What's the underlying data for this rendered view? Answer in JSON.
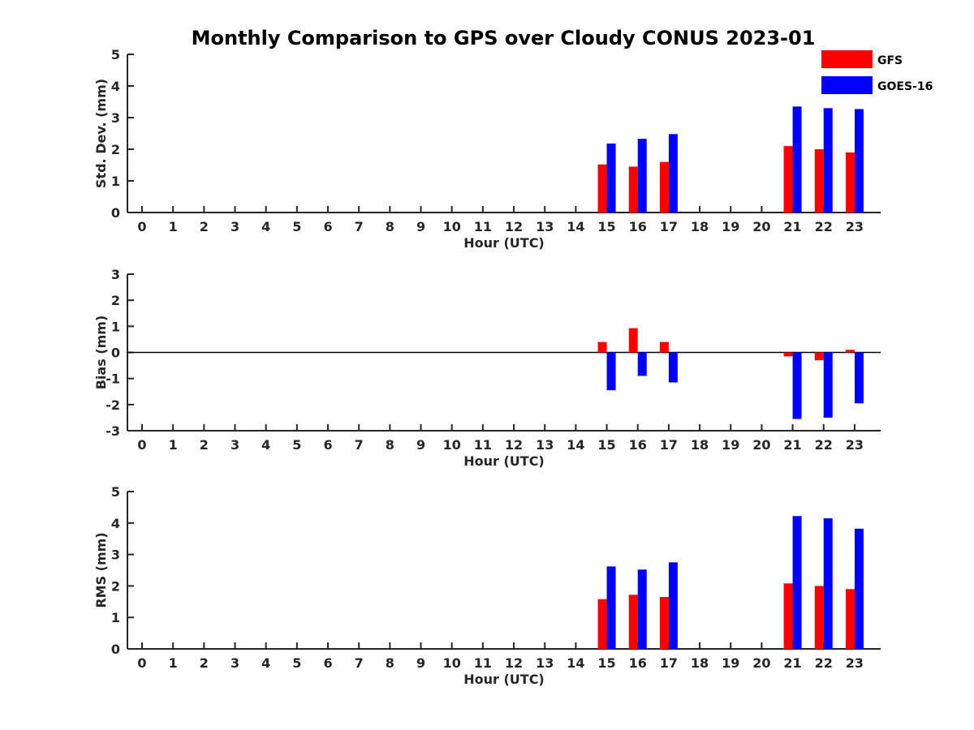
{
  "title": "Monthly Comparison to GPS over Cloudy CONUS 2023-01",
  "legend": [
    {
      "name": "GFS",
      "color": "#ff0000"
    },
    {
      "name": "GOES-16",
      "color": "#0000ff"
    }
  ],
  "chart_data": [
    {
      "type": "bar",
      "xlabel": "Hour (UTC)",
      "ylabel": "Std. Dev. (mm)",
      "ylim": [
        0,
        5
      ],
      "yticks": [
        0,
        1,
        2,
        3,
        4,
        5
      ],
      "categories": [
        "0",
        "1",
        "2",
        "3",
        "4",
        "5",
        "6",
        "7",
        "8",
        "9",
        "10",
        "11",
        "12",
        "13",
        "14",
        "15",
        "16",
        "17",
        "18",
        "19",
        "20",
        "21",
        "22",
        "23"
      ],
      "series": [
        {
          "name": "GFS",
          "color": "#ff0000",
          "values": [
            null,
            null,
            null,
            null,
            null,
            null,
            null,
            null,
            null,
            null,
            null,
            null,
            null,
            null,
            null,
            1.52,
            1.45,
            1.6,
            null,
            null,
            null,
            2.1,
            2.0,
            1.9
          ]
        },
        {
          "name": "GOES-16",
          "color": "#0000ff",
          "values": [
            null,
            null,
            null,
            null,
            null,
            null,
            null,
            null,
            null,
            null,
            null,
            null,
            null,
            null,
            null,
            2.18,
            2.33,
            2.48,
            null,
            null,
            null,
            3.35,
            3.3,
            3.27
          ]
        }
      ]
    },
    {
      "type": "bar",
      "xlabel": "Hour (UTC)",
      "ylabel": "Bias (mm)",
      "ylim": [
        -3,
        3
      ],
      "yticks": [
        -3,
        -2,
        -1,
        0,
        1,
        2,
        3
      ],
      "zero_line": true,
      "categories": [
        "0",
        "1",
        "2",
        "3",
        "4",
        "5",
        "6",
        "7",
        "8",
        "9",
        "10",
        "11",
        "12",
        "13",
        "14",
        "15",
        "16",
        "17",
        "18",
        "19",
        "20",
        "21",
        "22",
        "23"
      ],
      "series": [
        {
          "name": "GFS",
          "color": "#ff0000",
          "values": [
            null,
            null,
            null,
            null,
            null,
            null,
            null,
            null,
            null,
            null,
            null,
            null,
            null,
            null,
            null,
            0.4,
            0.93,
            0.4,
            null,
            null,
            null,
            -0.15,
            -0.3,
            0.1
          ]
        },
        {
          "name": "GOES-16",
          "color": "#0000ff",
          "values": [
            null,
            null,
            null,
            null,
            null,
            null,
            null,
            null,
            null,
            null,
            null,
            null,
            null,
            null,
            null,
            -1.45,
            -0.9,
            -1.15,
            null,
            null,
            null,
            -2.55,
            -2.5,
            -1.95
          ]
        }
      ]
    },
    {
      "type": "bar",
      "xlabel": "Hour (UTC)",
      "ylabel": "RMS (mm)",
      "ylim": [
        0,
        5
      ],
      "yticks": [
        0,
        1,
        2,
        3,
        4,
        5
      ],
      "categories": [
        "0",
        "1",
        "2",
        "3",
        "4",
        "5",
        "6",
        "7",
        "8",
        "9",
        "10",
        "11",
        "12",
        "13",
        "14",
        "15",
        "16",
        "17",
        "18",
        "19",
        "20",
        "21",
        "22",
        "23"
      ],
      "series": [
        {
          "name": "GFS",
          "color": "#ff0000",
          "values": [
            null,
            null,
            null,
            null,
            null,
            null,
            null,
            null,
            null,
            null,
            null,
            null,
            null,
            null,
            null,
            1.58,
            1.72,
            1.65,
            null,
            null,
            null,
            2.08,
            2.0,
            1.9
          ]
        },
        {
          "name": "GOES-16",
          "color": "#0000ff",
          "values": [
            null,
            null,
            null,
            null,
            null,
            null,
            null,
            null,
            null,
            null,
            null,
            null,
            null,
            null,
            null,
            2.62,
            2.52,
            2.75,
            null,
            null,
            null,
            4.22,
            4.15,
            3.82
          ]
        }
      ]
    }
  ]
}
